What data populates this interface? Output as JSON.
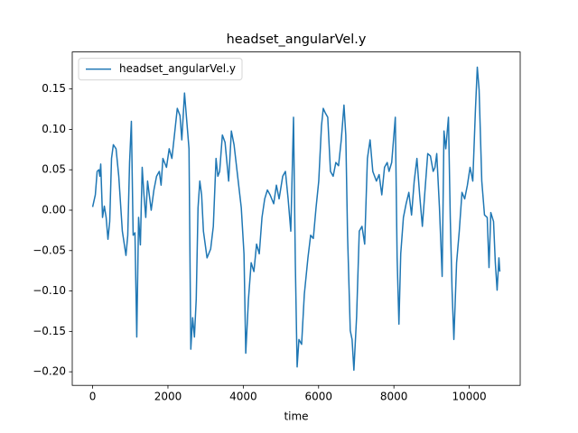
{
  "chart_data": {
    "type": "line",
    "title": "headset_angularVel.y",
    "xlabel": "time",
    "legend": "upper left",
    "xlim": [
      -541,
      11353
    ],
    "ylim": [
      -0.2168,
      0.1958
    ],
    "xticks": [
      0,
      2000,
      4000,
      6000,
      8000,
      10000
    ],
    "yticks": [
      {
        "value": -0.2,
        "label": "−0.20"
      },
      {
        "value": -0.15,
        "label": "−0.15"
      },
      {
        "value": -0.1,
        "label": "−0.10"
      },
      {
        "value": -0.05,
        "label": "−0.05"
      },
      {
        "value": 0,
        "label": "0.00"
      },
      {
        "value": 0.05,
        "label": "0.05"
      },
      {
        "value": 0.1,
        "label": "0.10"
      },
      {
        "value": 0.15,
        "label": "0.15"
      }
    ],
    "x": [
      0,
      72,
      120,
      167,
      191,
      215,
      263,
      311,
      359,
      407,
      454,
      502,
      550,
      622,
      694,
      789,
      885,
      933,
      981,
      1029,
      1076,
      1124,
      1172,
      1220,
      1268,
      1316,
      1363,
      1411,
      1459,
      1555,
      1627,
      1698,
      1770,
      1818,
      1866,
      1961,
      2033,
      2105,
      2177,
      2248,
      2320,
      2368,
      2440,
      2512,
      2559,
      2607,
      2655,
      2703,
      2751,
      2799,
      2846,
      2894,
      2942,
      3038,
      3134,
      3205,
      3277,
      3325,
      3373,
      3445,
      3516,
      3612,
      3684,
      3755,
      3851,
      3947,
      4019,
      4066,
      4138,
      4210,
      4282,
      4353,
      4425,
      4497,
      4569,
      4640,
      4712,
      4808,
      4880,
      4951,
      5047,
      5119,
      5191,
      5262,
      5334,
      5382,
      5430,
      5478,
      5549,
      5621,
      5717,
      5789,
      5860,
      5932,
      6004,
      6076,
      6124,
      6171,
      6243,
      6315,
      6387,
      6458,
      6530,
      6602,
      6674,
      6722,
      6769,
      6841,
      6889,
      6937,
      7009,
      7080,
      7152,
      7224,
      7296,
      7367,
      7439,
      7535,
      7607,
      7678,
      7750,
      7822,
      7870,
      7941,
      8037,
      8085,
      8133,
      8181,
      8252,
      8324,
      8396,
      8468,
      8539,
      8611,
      8683,
      8755,
      8826,
      8898,
      8970,
      9042,
      9090,
      9137,
      9209,
      9281,
      9329,
      9377,
      9448,
      9496,
      9544,
      9592,
      9664,
      9735,
      9807,
      9879,
      9951,
      10022,
      10094,
      10166,
      10214,
      10262,
      10333,
      10405,
      10477,
      10525,
      10573,
      10645,
      10692,
      10740,
      10788,
      10812
    ],
    "series": [
      {
        "name": "headset_angularVel.y",
        "color": "#1f77b4",
        "values": [
          0.004,
          0.019,
          0.048,
          0.05,
          0.042,
          0.057,
          -0.009,
          0.005,
          -0.009,
          -0.036,
          -0.014,
          0.064,
          0.081,
          0.076,
          0.042,
          -0.026,
          -0.056,
          -0.031,
          0.059,
          0.11,
          -0.031,
          -0.028,
          -0.157,
          -0.009,
          -0.043,
          0.053,
          0.019,
          -0.009,
          0.036,
          0.0,
          0.025,
          0.042,
          0.048,
          0.031,
          0.064,
          0.053,
          0.076,
          0.064,
          0.095,
          0.126,
          0.117,
          0.087,
          0.145,
          0.103,
          0.076,
          -0.172,
          -0.133,
          -0.157,
          -0.11,
          0.003,
          0.036,
          0.019,
          -0.026,
          -0.059,
          -0.048,
          -0.02,
          0.064,
          0.042,
          0.048,
          0.093,
          0.084,
          0.036,
          0.098,
          0.081,
          0.042,
          0.003,
          -0.054,
          -0.177,
          -0.11,
          -0.065,
          -0.076,
          -0.042,
          -0.054,
          -0.009,
          0.014,
          0.025,
          0.019,
          0.008,
          0.031,
          0.014,
          0.042,
          0.048,
          0.014,
          -0.026,
          0.115,
          -0.065,
          -0.194,
          -0.16,
          -0.166,
          -0.104,
          -0.059,
          -0.031,
          -0.035,
          0.003,
          0.036,
          0.104,
          0.126,
          0.121,
          0.115,
          0.048,
          0.042,
          0.059,
          0.055,
          0.087,
          0.13,
          0.093,
          -0.031,
          -0.149,
          -0.16,
          -0.198,
          -0.132,
          -0.026,
          -0.02,
          -0.042,
          0.064,
          0.087,
          0.048,
          0.036,
          0.044,
          0.019,
          0.053,
          0.059,
          0.048,
          0.059,
          0.115,
          -0.059,
          -0.141,
          -0.054,
          -0.009,
          0.008,
          0.022,
          -0.006,
          0.036,
          0.064,
          0.019,
          -0.02,
          0.025,
          0.07,
          0.067,
          0.048,
          0.053,
          0.07,
          0.003,
          -0.082,
          0.098,
          0.076,
          0.115,
          -0.009,
          -0.099,
          -0.16,
          -0.065,
          -0.026,
          0.022,
          0.014,
          0.031,
          0.053,
          0.036,
          0.126,
          0.177,
          0.149,
          0.036,
          -0.006,
          -0.009,
          -0.071,
          -0.003,
          -0.014,
          -0.065,
          -0.099,
          -0.059,
          -0.076
        ]
      }
    ]
  }
}
